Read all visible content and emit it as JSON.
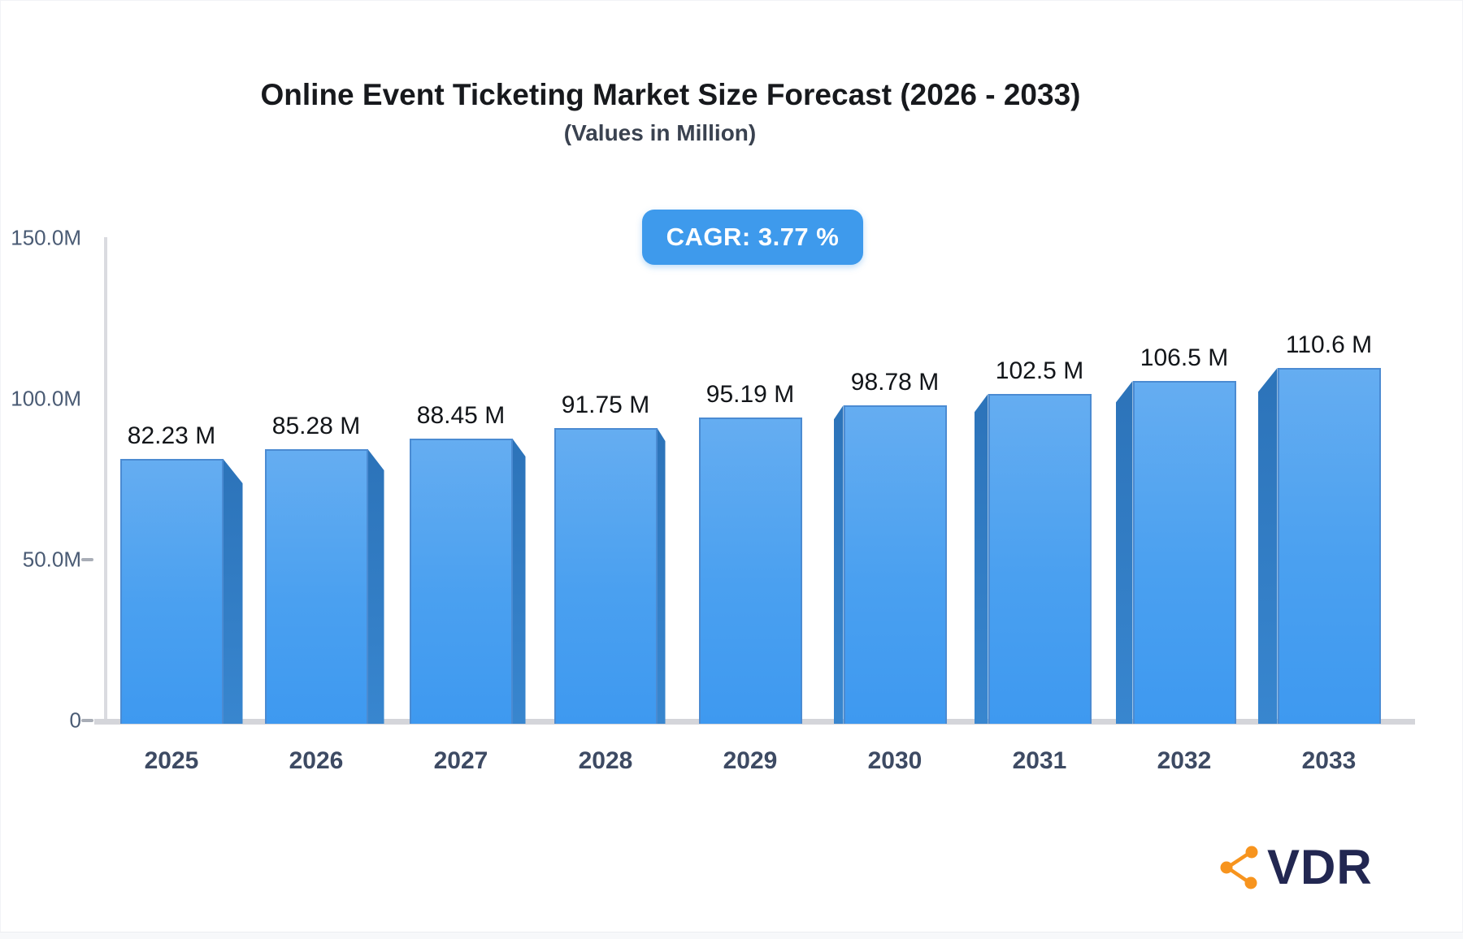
{
  "header": {
    "title": "Online Event Ticketing Market Size Forecast (2026 - 2033)",
    "subtitle": "(Values in Million)",
    "cagr_label": "CAGR: 3.77 %"
  },
  "chart_data": {
    "type": "bar",
    "title": "Online Event Ticketing Market Size Forecast (2026 - 2033)",
    "subtitle": "(Values in Million)",
    "cagr": "CAGR: 3.77 %",
    "categories": [
      "2025",
      "2026",
      "2027",
      "2028",
      "2029",
      "2030",
      "2031",
      "2032",
      "2033"
    ],
    "values": [
      82.23,
      85.28,
      88.45,
      91.75,
      95.19,
      98.78,
      102.5,
      106.5,
      110.6
    ],
    "bar_labels": [
      "82.23 M",
      "85.28 M",
      "88.45 M",
      "91.75 M",
      "95.19 M",
      "98.78 M",
      "102.5 M",
      "106.5 M",
      "110.6 M"
    ],
    "unit": "Million",
    "xlabel": "",
    "ylabel": "",
    "ylim": [
      0,
      150
    ],
    "y_tick_labels": [
      "150.0M",
      "100.0M",
      "50.0M",
      "0"
    ],
    "grid": false,
    "legend": "none",
    "style": "3d-extruded-bars",
    "colors": {
      "bar_face_top": "#65adf1",
      "bar_face_bottom": "#3e99f0",
      "bar_side": "#2f7ac3",
      "badge_background": "#3e9aec",
      "badge_text": "#ffffff",
      "axis_line": "#dadbe0",
      "year_label": "#3d4a63",
      "value_label": "#121519"
    }
  },
  "logo": {
    "text": "VDR",
    "icon": "share-network-icon",
    "icon_color": "#f7941e",
    "text_color": "#222751"
  }
}
